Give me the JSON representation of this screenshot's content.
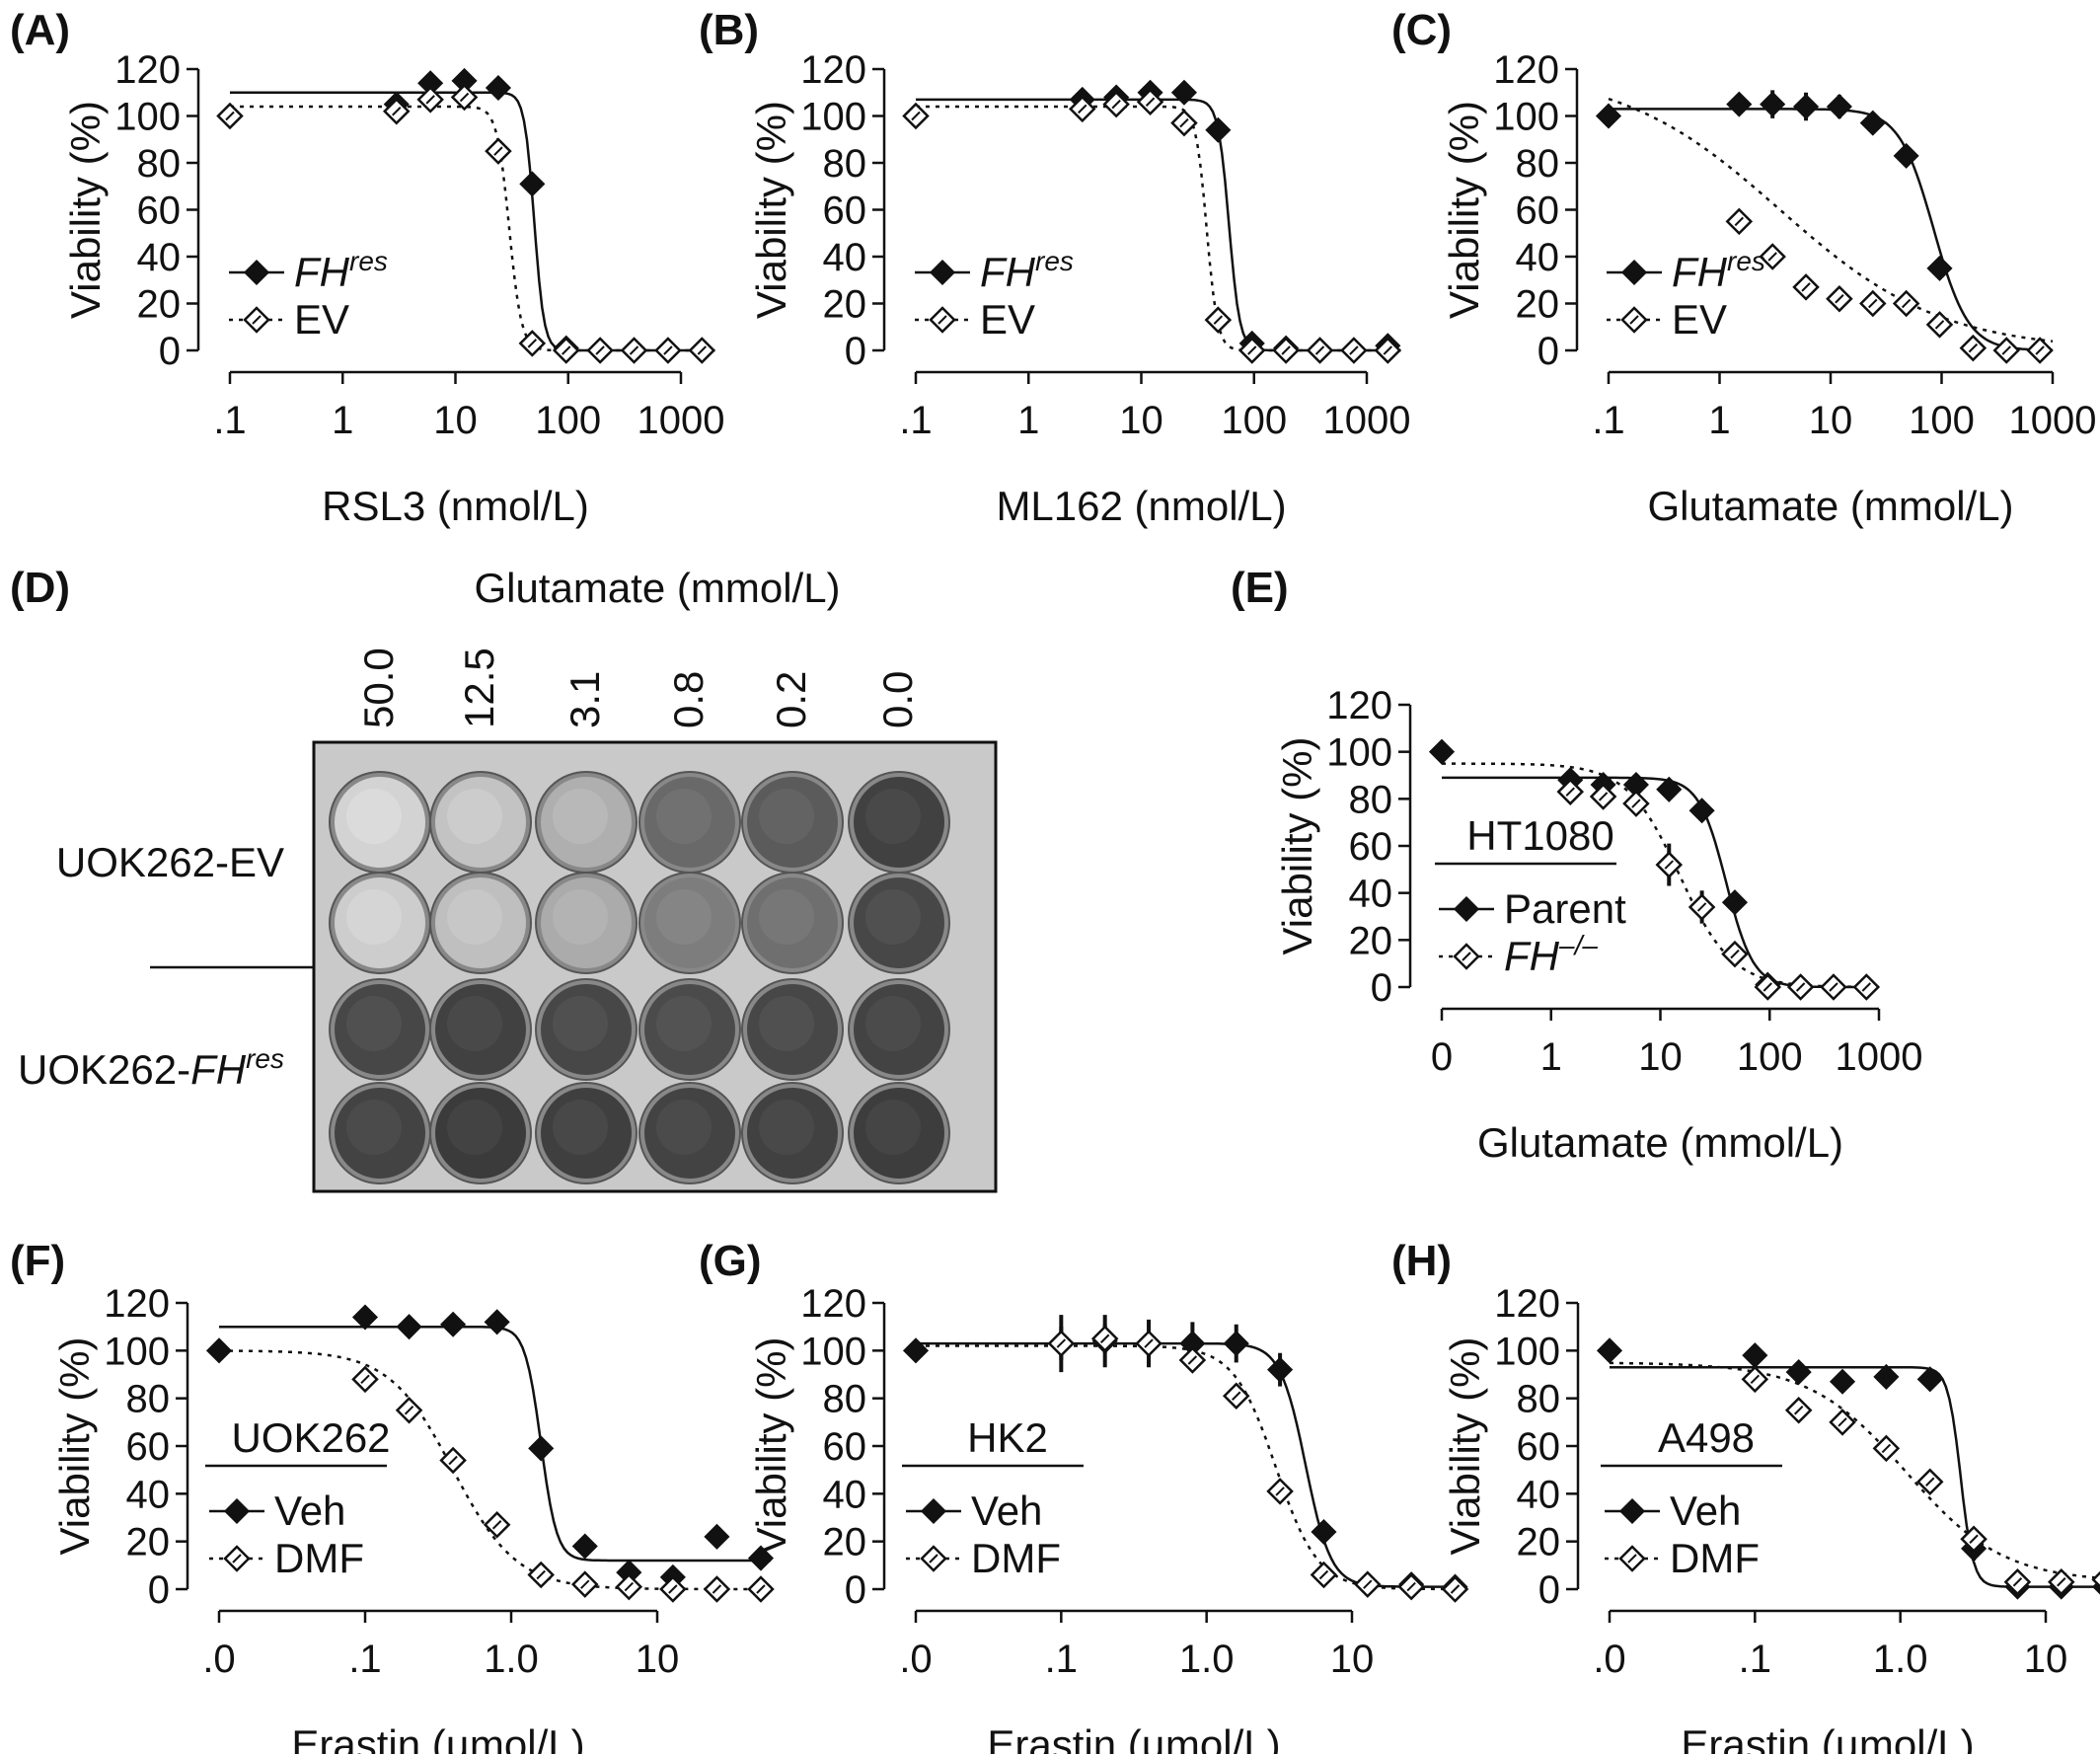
{
  "figure": {
    "plate": {
      "label": "(D)",
      "title": "Glutamate (mmol/L)",
      "columns": [
        "50.0",
        "12.5",
        "3.1",
        "0.8",
        "0.2",
        "0.0"
      ],
      "rows": [
        "UOK262-EV",
        "UOK262-FHres"
      ],
      "row_label_parts": {
        "ev": "UOK262-EV",
        "fh_prefix": "UOK262-",
        "fh_main": "FH",
        "fh_sup": "res"
      },
      "well_darkness": [
        [
          0.12,
          0.2,
          0.3,
          0.65,
          0.72,
          0.85
        ],
        [
          0.15,
          0.22,
          0.32,
          0.55,
          0.62,
          0.82
        ],
        [
          0.82,
          0.85,
          0.82,
          0.8,
          0.82,
          0.84
        ],
        [
          0.84,
          0.88,
          0.86,
          0.84,
          0.85,
          0.87
        ]
      ]
    }
  },
  "chart_data": [
    {
      "type": "scatter",
      "label": "(A)",
      "xlabel": "RSL3 (nmol/L)",
      "ylabel": "Viability (%)",
      "xscale": "log",
      "xticks": [
        0.1,
        1,
        10,
        100,
        1000
      ],
      "xticklabels": [
        ".1",
        "1",
        "10",
        "100",
        "1000"
      ],
      "xlim": [
        0.1,
        2000
      ],
      "ylim": [
        0,
        120
      ],
      "yticks": [
        0,
        20,
        40,
        60,
        80,
        100,
        120
      ],
      "legend": {
        "position": "bottom-left",
        "title": ""
      },
      "series": [
        {
          "name": "FHres",
          "name_main": "FH",
          "name_sup": "res",
          "marker": "filled-diamond",
          "line": "solid",
          "x": [
            0.1,
            3,
            6,
            12,
            24,
            48,
            96,
            192,
            384,
            768,
            1536
          ],
          "y": [
            100,
            105,
            114,
            115,
            112,
            71,
            1,
            0,
            0,
            0,
            0
          ],
          "fit": {
            "top": 110,
            "bottom": 0,
            "ec50": 50,
            "hill": 10
          }
        },
        {
          "name": "EV",
          "marker": "open-diamond",
          "line": "dotted",
          "x": [
            0.1,
            3,
            6,
            12,
            24,
            48,
            96,
            192,
            384,
            768,
            1536
          ],
          "y": [
            100,
            102,
            107,
            108,
            85,
            3,
            0,
            0,
            0,
            0,
            0
          ],
          "fit": {
            "top": 104,
            "bottom": 0,
            "ec50": 30,
            "hill": 8
          }
        }
      ]
    },
    {
      "type": "scatter",
      "label": "(B)",
      "xlabel": "ML162 (nmol/L)",
      "ylabel": "Viability (%)",
      "xscale": "log",
      "xticks": [
        0.1,
        1,
        10,
        100,
        1000
      ],
      "xticklabels": [
        ".1",
        "1",
        "10",
        "100",
        "1000"
      ],
      "xlim": [
        0.1,
        2000
      ],
      "ylim": [
        0,
        120
      ],
      "yticks": [
        0,
        20,
        40,
        60,
        80,
        100,
        120
      ],
      "legend": {
        "position": "bottom-left",
        "title": ""
      },
      "series": [
        {
          "name": "FHres",
          "name_main": "FH",
          "name_sup": "res",
          "marker": "filled-diamond",
          "line": "solid",
          "x": [
            0.1,
            3,
            6,
            12,
            24,
            48,
            96,
            192,
            384,
            768,
            1536
          ],
          "y": [
            100,
            107,
            108,
            110,
            110,
            94,
            3,
            1,
            0,
            0,
            2
          ],
          "fit": {
            "top": 107,
            "bottom": 0,
            "ec50": 60,
            "hill": 9
          }
        },
        {
          "name": "EV",
          "marker": "open-diamond",
          "line": "dotted",
          "x": [
            0.1,
            3,
            6,
            12,
            24,
            48,
            96,
            192,
            384,
            768,
            1536
          ],
          "y": [
            100,
            103,
            105,
            106,
            97,
            13,
            0,
            0,
            0,
            0,
            0
          ],
          "fit": {
            "top": 104,
            "bottom": 0,
            "ec50": 38,
            "hill": 9
          }
        }
      ]
    },
    {
      "type": "scatter",
      "label": "(C)",
      "xlabel": "Glutamate (mmol/L)",
      "ylabel": "Viability (%)",
      "xscale": "log",
      "xticks": [
        0.1,
        1,
        10,
        100,
        1000
      ],
      "xticklabels": [
        ".1",
        "1",
        "10",
        "100",
        "1000"
      ],
      "xlim": [
        0.1,
        1000
      ],
      "ylim": [
        0,
        120
      ],
      "yticks": [
        0,
        20,
        40,
        60,
        80,
        100,
        120
      ],
      "legend": {
        "position": "bottom-left",
        "title": ""
      },
      "series": [
        {
          "name": "FHres",
          "name_main": "FH",
          "name_sup": "res",
          "marker": "filled-diamond",
          "line": "solid",
          "x": [
            0.1,
            1.5,
            3,
            6,
            12,
            24,
            48,
            96,
            192,
            384,
            768
          ],
          "y": [
            100,
            105,
            105,
            104,
            104,
            97,
            83,
            35,
            1,
            0,
            0
          ],
          "err": [
            0,
            4,
            6,
            6,
            5,
            4,
            3,
            3,
            1,
            0,
            0
          ],
          "fit": {
            "top": 103,
            "bottom": 0,
            "ec50": 85,
            "hill": 2.8
          }
        },
        {
          "name": "EV",
          "marker": "open-diamond",
          "line": "dotted",
          "x": [
            1.5,
            3,
            6,
            12,
            24,
            48,
            96,
            192,
            384,
            768
          ],
          "y": [
            55,
            40,
            27,
            22,
            20,
            20,
            11,
            1,
            0,
            0
          ],
          "fit": {
            "top": 120,
            "bottom": 0,
            "ec50": 3.5,
            "hill": 0.6
          }
        }
      ]
    },
    {
      "type": "scatter",
      "label": "(E)",
      "xlabel": "Glutamate (mmol/L)",
      "ylabel": "Viability (%)",
      "xscale": "log",
      "xticks": [
        0.1,
        1,
        10,
        100,
        1000
      ],
      "xticklabels": [
        "0",
        "1",
        "10",
        "100",
        "1000"
      ],
      "xlim": [
        0.1,
        1000
      ],
      "ylim": [
        0,
        120
      ],
      "yticks": [
        0,
        20,
        40,
        60,
        80,
        100,
        120
      ],
      "legend": {
        "position": "bottom-left",
        "title": "HT1080"
      },
      "series": [
        {
          "name": "Parent",
          "marker": "filled-diamond",
          "line": "solid",
          "x": [
            0.1,
            1.5,
            3,
            6,
            12,
            24,
            48,
            96,
            192,
            384,
            768
          ],
          "y": [
            100,
            88,
            86,
            86,
            84,
            75,
            36,
            1,
            0,
            0,
            0
          ],
          "err": [
            0,
            4,
            4,
            4,
            4,
            4,
            2,
            1,
            0,
            0,
            0
          ],
          "fit": {
            "top": 89,
            "bottom": 0,
            "ec50": 40,
            "hill": 3.5
          }
        },
        {
          "name": "FH-/-",
          "name_main": "FH",
          "name_sup": "–/–",
          "marker": "open-diamond",
          "line": "dotted",
          "x": [
            1.5,
            3,
            6,
            12,
            24,
            48,
            96,
            192,
            384,
            768
          ],
          "y": [
            83,
            81,
            78,
            52,
            34,
            14,
            0,
            0,
            0,
            0
          ],
          "err": [
            3,
            4,
            5,
            9,
            7,
            3,
            0,
            0,
            0,
            0
          ],
          "fit": {
            "top": 95,
            "bottom": 0,
            "ec50": 15,
            "hill": 1.8
          }
        }
      ]
    },
    {
      "type": "scatter",
      "label": "(F)",
      "xlabel": "Erastin (µmol/L)",
      "ylabel": "Viability (%)",
      "xscale": "log",
      "xticks": [
        0.01,
        0.1,
        1,
        10
      ],
      "xticklabels": [
        ".0",
        ".1",
        "1.0",
        "10"
      ],
      "xlim": [
        0.01,
        60
      ],
      "ylim": [
        0,
        120
      ],
      "yticks": [
        0,
        20,
        40,
        60,
        80,
        100,
        120
      ],
      "legend": {
        "position": "bottom-left",
        "title": "UOK262"
      },
      "series": [
        {
          "name": "Veh",
          "marker": "filled-diamond",
          "line": "solid",
          "x": [
            0.01,
            0.1,
            0.2,
            0.4,
            0.8,
            1.6,
            3.2,
            6.4,
            12.8,
            25.6,
            51.2
          ],
          "y": [
            100,
            114,
            110,
            111,
            112,
            59,
            18,
            7,
            5,
            22,
            13
          ],
          "fit": {
            "top": 110,
            "bottom": 12,
            "ec50": 1.6,
            "hill": 8
          }
        },
        {
          "name": "DMF",
          "marker": "open-diamond",
          "line": "dotted",
          "x": [
            0.1,
            0.2,
            0.4,
            0.8,
            1.6,
            3.2,
            6.4,
            12.8,
            25.6,
            51.2
          ],
          "y": [
            88,
            75,
            54,
            27,
            6,
            2,
            1,
            0,
            0,
            0
          ],
          "fit": {
            "top": 100,
            "bottom": 0,
            "ec50": 0.4,
            "hill": 2
          }
        }
      ]
    },
    {
      "type": "scatter",
      "label": "(G)",
      "xlabel": "Erastin (µmol/L)",
      "ylabel": "Viability (%)",
      "xscale": "log",
      "xticks": [
        0.01,
        0.1,
        1,
        10
      ],
      "xticklabels": [
        ".0",
        ".1",
        "1.0",
        "10"
      ],
      "xlim": [
        0.01,
        60
      ],
      "ylim": [
        0,
        120
      ],
      "yticks": [
        0,
        20,
        40,
        60,
        80,
        100,
        120
      ],
      "legend": {
        "position": "bottom-left",
        "title": "HK2"
      },
      "series": [
        {
          "name": "Veh",
          "marker": "filled-diamond",
          "line": "solid",
          "x": [
            0.01,
            0.1,
            0.2,
            0.4,
            0.8,
            1.6,
            3.2,
            6.4,
            12.8,
            25.6,
            51.2
          ],
          "y": [
            100,
            103,
            104,
            103,
            103,
            103,
            92,
            24,
            2,
            2,
            1
          ],
          "err": [
            0,
            12,
            11,
            10,
            9,
            8,
            7,
            3,
            1,
            1,
            0
          ],
          "fit": {
            "top": 103,
            "bottom": 1,
            "ec50": 4.8,
            "hill": 5
          }
        },
        {
          "name": "DMF",
          "marker": "open-diamond",
          "line": "dotted",
          "x": [
            0.1,
            0.2,
            0.4,
            0.8,
            1.6,
            3.2,
            6.4,
            12.8,
            25.6,
            51.2
          ],
          "y": [
            103,
            105,
            103,
            96,
            81,
            41,
            6,
            2,
            1,
            0
          ],
          "err": [
            7,
            6,
            5,
            4,
            5,
            4,
            2,
            0,
            0,
            0
          ],
          "fit": {
            "top": 102,
            "bottom": 0,
            "ec50": 3,
            "hill": 3
          }
        }
      ]
    },
    {
      "type": "scatter",
      "label": "(H)",
      "xlabel": "Erastin (µmol/L)",
      "ylabel": "Viability (%)",
      "xscale": "log",
      "xticks": [
        0.01,
        0.1,
        1,
        10
      ],
      "xticklabels": [
        ".0",
        ".1",
        "1.0",
        "10"
      ],
      "xlim": [
        0.01,
        60
      ],
      "ylim": [
        0,
        120
      ],
      "yticks": [
        0,
        20,
        40,
        60,
        80,
        100,
        120
      ],
      "legend": {
        "position": "bottom-left",
        "title": "A498"
      },
      "series": [
        {
          "name": "Veh",
          "marker": "filled-diamond",
          "line": "solid",
          "x": [
            0.01,
            0.1,
            0.2,
            0.4,
            0.8,
            1.6,
            3.2,
            6.4,
            12.8,
            25.6,
            51.2
          ],
          "y": [
            100,
            98,
            91,
            87,
            89,
            88,
            17,
            1,
            1,
            1,
            1
          ],
          "err": [
            0,
            4,
            3,
            3,
            3,
            2,
            5,
            1,
            1,
            1,
            1
          ],
          "fit": {
            "top": 93,
            "bottom": 1,
            "ec50": 2.6,
            "hill": 10
          }
        },
        {
          "name": "DMF",
          "marker": "open-diamond",
          "line": "dotted",
          "x": [
            0.1,
            0.2,
            0.4,
            0.8,
            1.6,
            3.2,
            6.4,
            12.8,
            25.6,
            51.2
          ],
          "y": [
            88,
            75,
            70,
            59,
            45,
            21,
            3,
            3,
            4,
            4
          ],
          "err": [
            4,
            3,
            3,
            3,
            3,
            3,
            1,
            1,
            1,
            1
          ],
          "fit": {
            "top": 95,
            "bottom": 3,
            "ec50": 1.1,
            "hill": 1.3
          }
        }
      ]
    }
  ]
}
